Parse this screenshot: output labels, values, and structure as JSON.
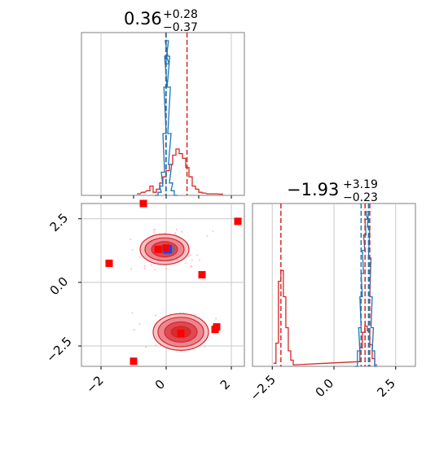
{
  "colors": {
    "red": "#d62728",
    "blue": "#1f77b4",
    "navy": "#1f3fbf",
    "pink": "#f4a6b8",
    "marker": "#ff0000",
    "grid": "#c8c8c8",
    "frame": "#7f7f7f"
  },
  "titles": {
    "p1": {
      "value": "0.36",
      "plus": "+0.28",
      "minus": "−0.37"
    },
    "p2": {
      "value": "−1.93",
      "plus": "+3.19",
      "minus": "−0.23"
    }
  },
  "chart_data": [
    {
      "type": "area",
      "panel": "marginal-param-1",
      "xlim": [
        -2.6,
        2.4
      ],
      "grid": true,
      "markers": {
        "red": [
          -0.01,
          0.64
        ],
        "blue": [
          0.0
        ]
      },
      "series": [
        {
          "color": "red",
          "x": [
            -0.85,
            -0.7,
            -0.55,
            -0.45,
            -0.35,
            -0.25,
            -0.15,
            -0.05,
            0.05,
            0.15,
            0.25,
            0.35,
            0.45,
            0.55,
            0.65,
            0.75,
            0.85,
            0.95,
            1.05,
            1.15,
            1.3,
            1.5,
            1.7
          ],
          "values": [
            0.01,
            0.02,
            0.03,
            0.06,
            0.02,
            0.04,
            0.08,
            0.12,
            0.16,
            0.2,
            0.26,
            0.3,
            0.27,
            0.24,
            0.18,
            0.12,
            0.06,
            0.04,
            0.02,
            0.015,
            0.01,
            0.01,
            0.008
          ]
        },
        {
          "color": "blue",
          "x": [
            -0.3,
            -0.2,
            -0.15,
            -0.1,
            -0.05,
            -0.02,
            0.0,
            0.02,
            0.04,
            0.06,
            0.08,
            0.1,
            0.12,
            0.15,
            0.2,
            0.3
          ],
          "values": [
            0.0,
            0.02,
            0.06,
            0.15,
            0.4,
            0.7,
            0.9,
            1.0,
            0.85,
            0.9,
            0.7,
            0.4,
            0.2,
            0.08,
            0.03,
            0.0
          ]
        }
      ]
    },
    {
      "type": "scatter",
      "panel": "joint",
      "xlim": [
        -2.6,
        2.4
      ],
      "ylim": [
        -3.3,
        3.1
      ],
      "xticks": [
        "−2",
        "0",
        "2"
      ],
      "yticks": [
        "−2.5",
        "0.0",
        "2.5"
      ],
      "grid": true,
      "points": [
        [
          -0.7,
          3.1
        ],
        [
          2.2,
          2.4
        ],
        [
          -0.25,
          1.3
        ],
        [
          0.0,
          1.35
        ],
        [
          -1.75,
          0.75
        ],
        [
          1.1,
          0.3
        ],
        [
          1.55,
          -1.75
        ],
        [
          1.5,
          -1.85
        ],
        [
          0.45,
          -2.0
        ],
        [
          -1.0,
          -3.1
        ]
      ],
      "blue_point": [
        0.05,
        1.3
      ],
      "contours": [
        {
          "center": [
            -0.05,
            1.3
          ],
          "rx": [
            0.75,
            0.6,
            0.4,
            0.2
          ],
          "ry": [
            0.6,
            0.45,
            0.3,
            0.15
          ]
        },
        {
          "center": [
            0.45,
            -1.95
          ],
          "rx": [
            0.85,
            0.7,
            0.5,
            0.3
          ],
          "ry": [
            0.72,
            0.58,
            0.4,
            0.22
          ]
        }
      ]
    },
    {
      "type": "area",
      "panel": "marginal-param-2",
      "xlim": [
        -3.3,
        3.3
      ],
      "xticks": [
        "−2.5",
        "0.0",
        "2.5"
      ],
      "grid": true,
      "markers": {
        "red": [
          -2.15,
          1.26,
          1.45
        ],
        "blue": [
          1.1,
          1.4
        ]
      },
      "series": [
        {
          "color": "red",
          "x": [
            -2.4,
            -2.3,
            -2.2,
            -2.1,
            -2.0,
            -1.9,
            -1.8,
            -1.7,
            -1.6,
            1.0,
            1.1,
            1.2,
            1.3,
            1.4,
            1.5,
            1.6,
            1.7
          ],
          "values": [
            0.02,
            0.15,
            0.55,
            0.62,
            0.45,
            0.25,
            0.1,
            0.04,
            0.01,
            0.03,
            0.12,
            0.22,
            0.26,
            0.23,
            0.14,
            0.05,
            0.01
          ]
        },
        {
          "color": "blue",
          "x": [
            0.9,
            1.0,
            1.05,
            1.1,
            1.15,
            1.2,
            1.25,
            1.3,
            1.35,
            1.4,
            1.45,
            1.5,
            1.55,
            1.6,
            1.7
          ],
          "values": [
            0.0,
            0.1,
            0.25,
            0.45,
            0.6,
            0.75,
            0.85,
            0.95,
            1.0,
            0.9,
            0.7,
            0.45,
            0.25,
            0.1,
            0.0
          ]
        }
      ]
    }
  ]
}
